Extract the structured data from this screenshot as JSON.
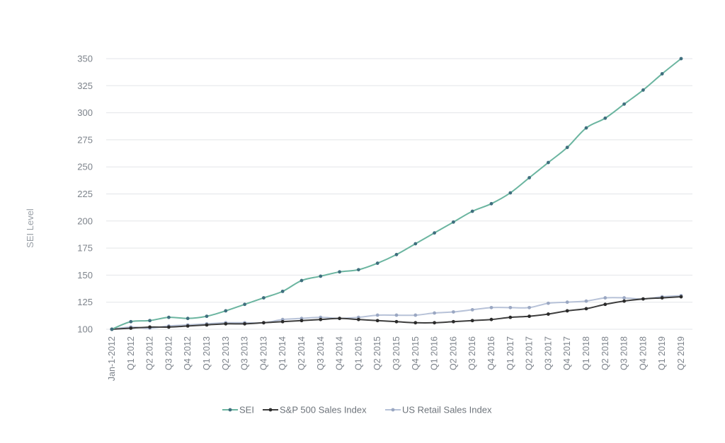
{
  "chart_data": {
    "type": "line",
    "title": "",
    "xlabel": "",
    "ylabel": "SEI Level",
    "ylim": [
      100,
      350
    ],
    "yticks": [
      100,
      125,
      150,
      175,
      200,
      225,
      250,
      275,
      300,
      325,
      350
    ],
    "grid": true,
    "legend_position": "bottom",
    "categories": [
      "Jan-1-2012",
      "Q1 2012",
      "Q2 2012",
      "Q3 2012",
      "Q4 2012",
      "Q1 2013",
      "Q2 2013",
      "Q3 2013",
      "Q4 2013",
      "Q1 2014",
      "Q2 2014",
      "Q3 2014",
      "Q4 2014",
      "Q1 2015",
      "Q2 2015",
      "Q3 2015",
      "Q4 2015",
      "Q1 2016",
      "Q2 2016",
      "Q3 2016",
      "Q4 2016",
      "Q1 2017",
      "Q2 2017",
      "Q3 2017",
      "Q4 2017",
      "Q1 2018",
      "Q2 2018",
      "Q3 2018",
      "Q4 2018",
      "Q1 2019",
      "Q2 2019"
    ],
    "series": [
      {
        "name": "SEI",
        "color": "#6bb5a0",
        "marker_color": "#3f6f7e",
        "values": [
          100,
          107,
          108,
          111,
          110,
          112,
          117,
          123,
          129,
          135,
          145,
          149,
          153,
          155,
          161,
          169,
          179,
          189,
          199,
          209,
          216,
          226,
          240,
          254,
          268,
          286,
          295,
          308,
          321,
          336,
          350
        ]
      },
      {
        "name": "S&P 500 Sales Index",
        "color": "#3d3d3d",
        "marker_color": "#2a2a2a",
        "values": [
          100,
          101,
          102,
          102,
          103,
          104,
          105,
          105,
          106,
          107,
          108,
          109,
          110,
          109,
          108,
          107,
          106,
          106,
          107,
          108,
          109,
          111,
          112,
          114,
          117,
          119,
          123,
          126,
          128,
          129,
          130
        ]
      },
      {
        "name": "US Retail Sales Index",
        "color": "#b7c2d8",
        "marker_color": "#9aa7c2",
        "values": [
          100,
          102,
          101,
          103,
          104,
          105,
          106,
          106,
          106,
          109,
          110,
          111,
          110,
          111,
          113,
          113,
          113,
          115,
          116,
          118,
          120,
          120,
          120,
          124,
          125,
          126,
          129,
          129,
          128,
          130,
          131
        ]
      }
    ]
  }
}
